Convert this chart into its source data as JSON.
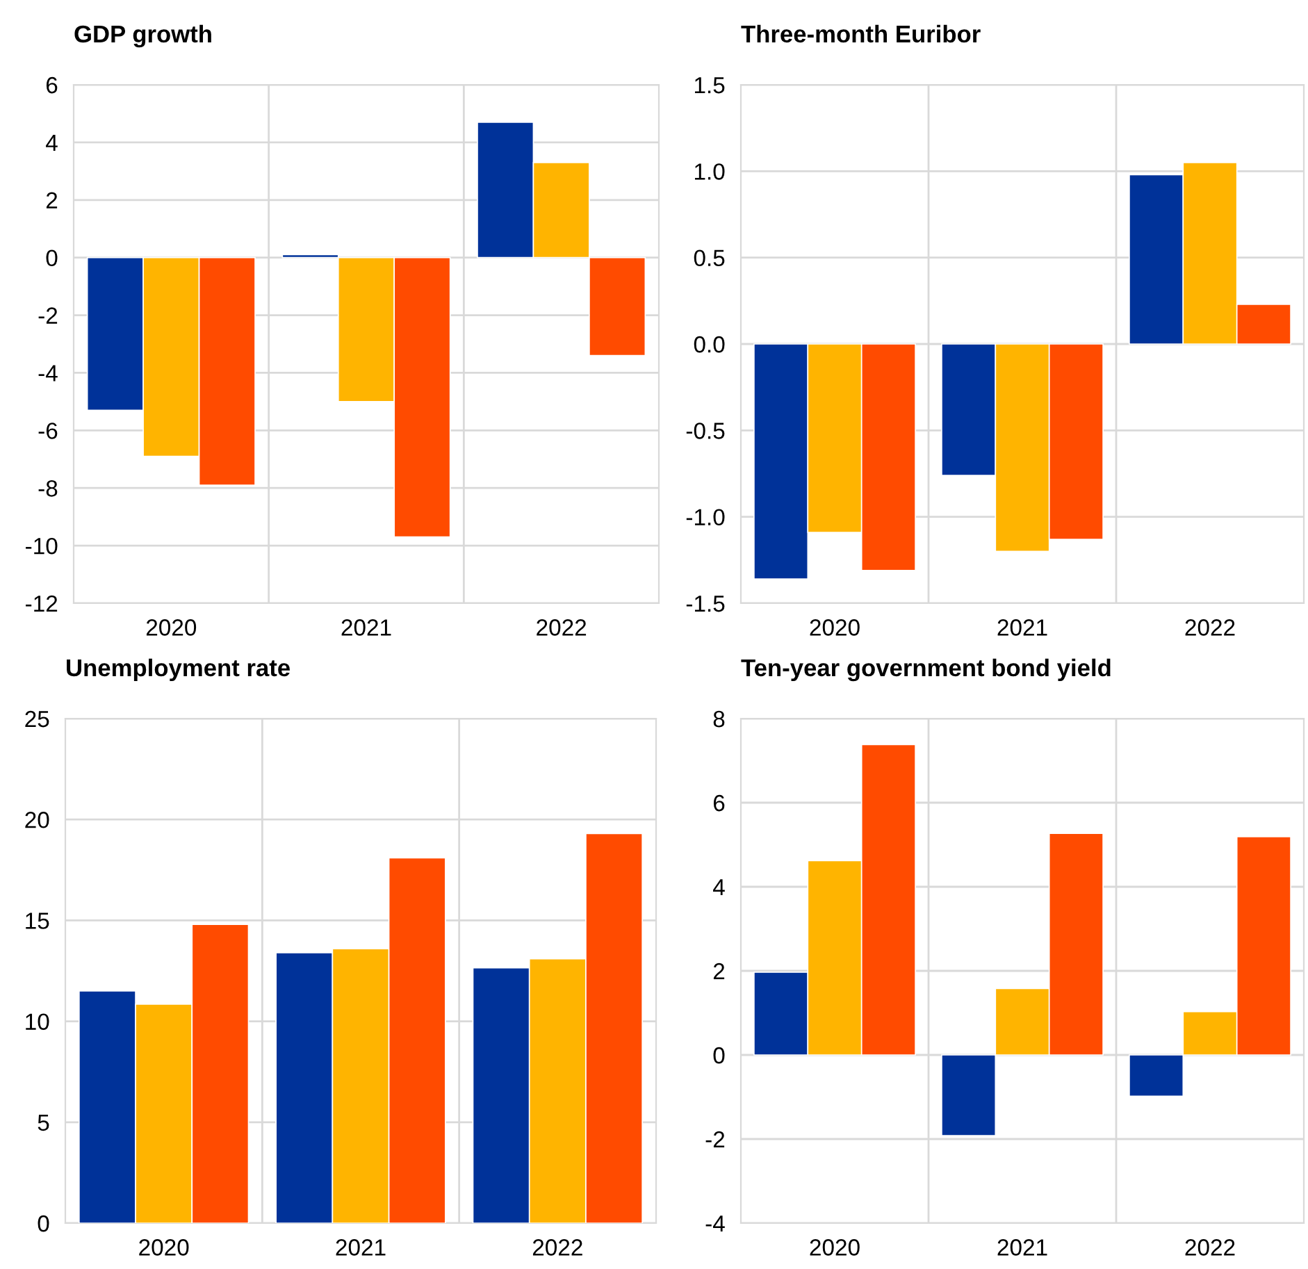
{
  "chart_data": [
    {
      "type": "bar",
      "title": "GDP growth",
      "categories": [
        "2020",
        "2021",
        "2022"
      ],
      "ylim": [
        -12,
        6
      ],
      "yticks": [
        -12,
        -10,
        -8,
        -6,
        -4,
        -2,
        0,
        2,
        4,
        6
      ],
      "grid": "y",
      "series": [
        {
          "color": "#003299",
          "values": [
            -5.3,
            0.1,
            4.7
          ]
        },
        {
          "color": "#ffb400",
          "values": [
            -6.9,
            -5.0,
            3.3
          ]
        },
        {
          "color": "#ff4b00",
          "values": [
            -7.9,
            -9.7,
            -3.4
          ]
        }
      ]
    },
    {
      "type": "bar",
      "title": "Three-month Euribor",
      "categories": [
        "2020",
        "2021",
        "2022"
      ],
      "ylim": [
        -1.5,
        1.5
      ],
      "yticks": [
        {
          "value": -1.5,
          "label": "-1.5"
        },
        {
          "value": -1.0,
          "label": "-1.0"
        },
        {
          "value": -0.5,
          "label": "-0.5"
        },
        {
          "value": 0,
          "label": "0.0"
        },
        {
          "value": 0.5,
          "label": "0.5"
        },
        {
          "value": 1.0,
          "label": "1.0"
        },
        {
          "value": 1.5,
          "label": "1.5"
        }
      ],
      "grid": "y",
      "series": [
        {
          "color": "#003299",
          "values": [
            -1.36,
            -0.76,
            0.98
          ]
        },
        {
          "color": "#ffb400",
          "values": [
            -1.09,
            -1.2,
            1.05
          ]
        },
        {
          "color": "#ff4b00",
          "values": [
            -1.31,
            -1.13,
            0.23
          ]
        }
      ]
    },
    {
      "type": "bar",
      "title": "Unemployment rate",
      "categories": [
        "2020",
        "2021",
        "2022"
      ],
      "ylim": [
        0,
        25
      ],
      "yticks": [
        0,
        5,
        10,
        15,
        20,
        25
      ],
      "grid": "y",
      "series": [
        {
          "color": "#003299",
          "values": [
            11.5,
            13.4,
            12.65
          ]
        },
        {
          "color": "#ffb400",
          "values": [
            10.85,
            13.6,
            13.1
          ]
        },
        {
          "color": "#ff4b00",
          "values": [
            14.8,
            18.1,
            19.3
          ]
        }
      ]
    },
    {
      "type": "bar",
      "title": "Ten-year government bond yield",
      "categories": [
        "2020",
        "2021",
        "2022"
      ],
      "ylim": [
        -4,
        8
      ],
      "yticks": [
        -4,
        -2,
        0,
        2,
        4,
        6,
        8
      ],
      "grid": "y",
      "series": [
        {
          "color": "#003299",
          "values": [
            1.97,
            -1.92,
            -0.98
          ]
        },
        {
          "color": "#ffb400",
          "values": [
            4.62,
            1.58,
            1.03
          ]
        },
        {
          "color": "#ff4b00",
          "values": [
            7.38,
            5.27,
            5.19
          ]
        }
      ]
    }
  ]
}
